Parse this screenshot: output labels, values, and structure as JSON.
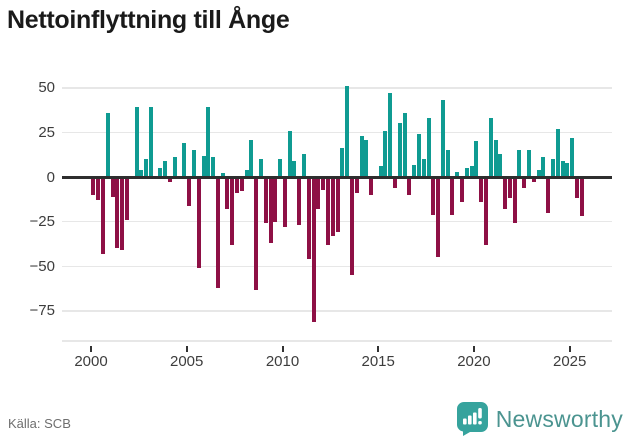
{
  "title": "Nettoinflyttning till Ånge",
  "source": "Källa: SCB",
  "brand": {
    "name": "Newsworthy",
    "icon": "newsworthy-speech-bubble-barchart-icon"
  },
  "colors": {
    "positive_bar": "#0f9b92",
    "negative_bar": "#8e1045",
    "zero_axis": "#2e2e2e",
    "gridline": "#e7e7e7",
    "axis_label": "#3d3d3d",
    "title_text": "#1a1a1a",
    "source_text": "#6e6e6e",
    "brand_teal": "#36a39d",
    "brand_text": "#4b9490"
  },
  "chart_data": {
    "type": "bar",
    "title": "Nettoinflyttning till Ånge",
    "x_unit": "quarter",
    "xlabel": "",
    "ylabel": "",
    "grid": true,
    "legend": false,
    "yticks": [
      50,
      25,
      0,
      -25,
      -50,
      -75
    ],
    "xticks": [
      2000,
      2005,
      2010,
      2015,
      2020,
      2025
    ],
    "ylim": [
      -90,
      57
    ],
    "x": [
      "2000Q1",
      "2000Q2",
      "2000Q3",
      "2000Q4",
      "2001Q1",
      "2001Q2",
      "2001Q3",
      "2001Q4",
      "2002Q1",
      "2002Q2",
      "2002Q3",
      "2002Q4",
      "2003Q1",
      "2003Q2",
      "2003Q3",
      "2003Q4",
      "2004Q1",
      "2004Q2",
      "2004Q3",
      "2004Q4",
      "2005Q1",
      "2005Q2",
      "2005Q3",
      "2005Q4",
      "2006Q1",
      "2006Q2",
      "2006Q3",
      "2006Q4",
      "2007Q1",
      "2007Q2",
      "2007Q3",
      "2007Q4",
      "2008Q1",
      "2008Q2",
      "2008Q3",
      "2008Q4",
      "2009Q1",
      "2009Q2",
      "2009Q3",
      "2009Q4",
      "2010Q1",
      "2010Q2",
      "2010Q3",
      "2010Q4",
      "2011Q1",
      "2011Q2",
      "2011Q3",
      "2011Q4",
      "2012Q1",
      "2012Q2",
      "2012Q3",
      "2012Q4",
      "2013Q1",
      "2013Q2",
      "2013Q3",
      "2013Q4",
      "2014Q1",
      "2014Q2",
      "2014Q3",
      "2014Q4",
      "2015Q1",
      "2015Q2",
      "2015Q3",
      "2015Q4",
      "2016Q1",
      "2016Q2",
      "2016Q3",
      "2016Q4",
      "2017Q1",
      "2017Q2",
      "2017Q3",
      "2017Q4",
      "2018Q1",
      "2018Q2",
      "2018Q3",
      "2018Q4",
      "2019Q1",
      "2019Q2",
      "2019Q3",
      "2019Q4",
      "2020Q1",
      "2020Q2",
      "2020Q3",
      "2020Q4",
      "2021Q1",
      "2021Q2",
      "2021Q3",
      "2021Q4",
      "2022Q1",
      "2022Q2",
      "2022Q3",
      "2022Q4",
      "2023Q1",
      "2023Q2",
      "2023Q3",
      "2023Q4",
      "2024Q1",
      "2024Q2",
      "2024Q3",
      "2024Q4",
      "2025Q1",
      "2025Q2",
      "2025Q3"
    ],
    "values": [
      -10,
      -13,
      -43,
      36,
      -11,
      -40,
      -41,
      -24,
      0,
      39,
      4,
      10,
      39,
      0,
      5,
      9,
      -3,
      11,
      0,
      19,
      -16,
      15,
      -51,
      12,
      39,
      11,
      -62,
      2,
      -18,
      -38,
      -9,
      -8,
      4,
      21,
      -63,
      10,
      -26,
      -37,
      -25,
      10,
      -28,
      26,
      9,
      -27,
      13,
      -46,
      -81,
      -18,
      -7,
      -38,
      -33,
      -31,
      16,
      51,
      -55,
      -9,
      23,
      21,
      -10,
      0,
      6,
      26,
      47,
      -6,
      30,
      36,
      -10,
      7,
      24,
      10,
      33,
      -21,
      -45,
      43,
      15,
      -21,
      3,
      -14,
      5,
      6,
      20,
      -14,
      -38,
      33,
      21,
      13,
      -18,
      -12,
      -26,
      15,
      -6,
      15,
      -3,
      4,
      11,
      -20,
      10,
      27,
      9,
      8,
      22,
      -12,
      -22
    ]
  }
}
